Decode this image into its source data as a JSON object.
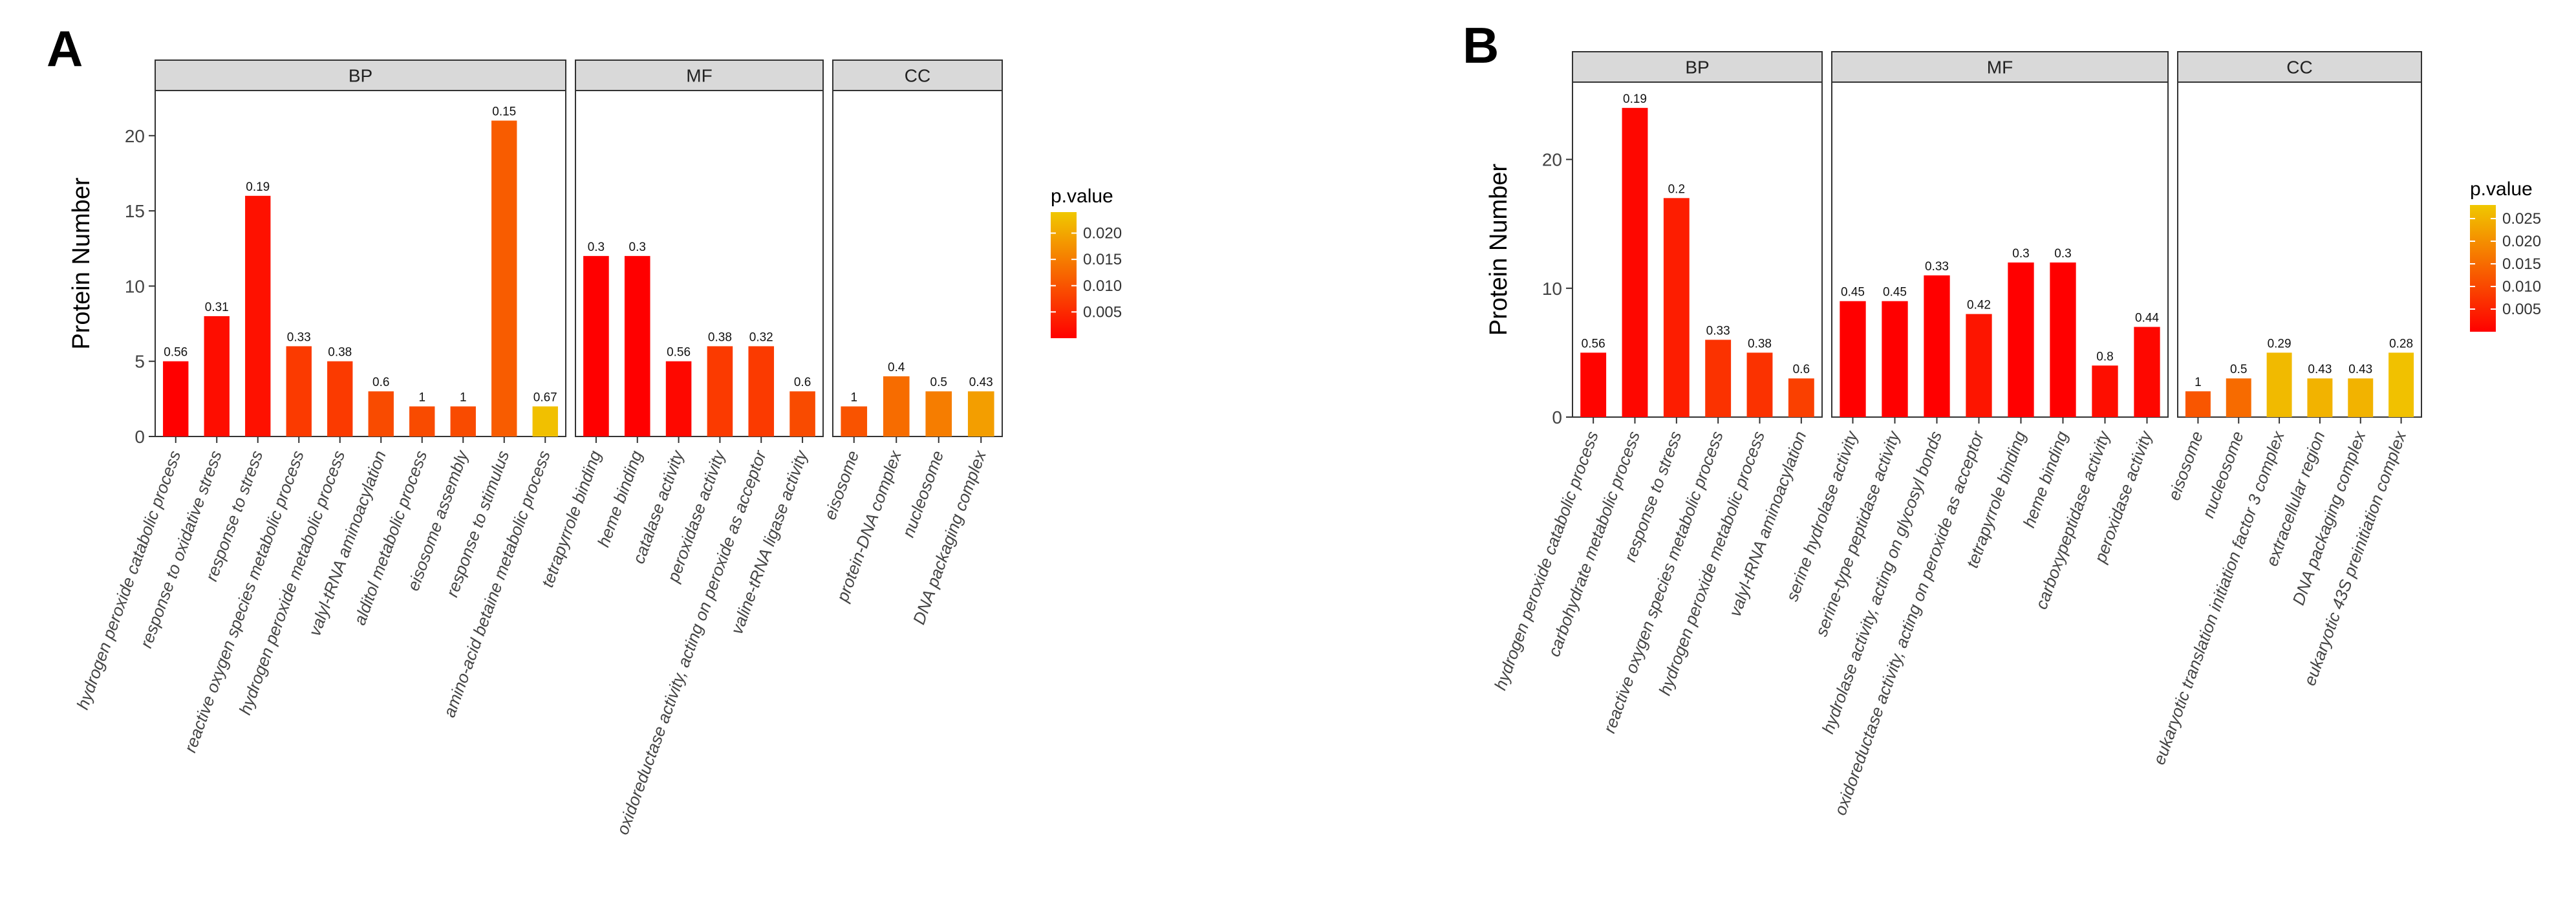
{
  "colors": {
    "low": "#ff0000",
    "high": "#f0c800",
    "strip": "#d9d9d9",
    "frame": "#333333"
  },
  "chart_data": [
    {
      "panel_label": "A",
      "type": "bar",
      "ylabel": "Protein Number",
      "ylim": [
        0,
        23
      ],
      "yticks": [
        0,
        5,
        10,
        15,
        20
      ],
      "legend": {
        "title": "p.value",
        "min": 0.0,
        "max": 0.024,
        "ticks": [
          0.005,
          0.01,
          0.015,
          0.02
        ],
        "tick_labels": [
          "0.005",
          "0.010",
          "0.015",
          "0.020"
        ],
        "position": "right"
      },
      "facets": [
        {
          "name": "BP",
          "categories": [
            {
              "label": "hydrogen peroxide catabolic process",
              "value": 5,
              "annotation": "0.56",
              "p": 0.0
            },
            {
              "label": "response to oxidative stress",
              "value": 8,
              "annotation": "0.31",
              "p": 0.0015
            },
            {
              "label": "response to stress",
              "value": 16,
              "annotation": "0.19",
              "p": 0.002
            },
            {
              "label": "reactive oxygen species metabolic process",
              "value": 6,
              "annotation": "0.33",
              "p": 0.007
            },
            {
              "label": "hydrogen peroxide metabolic process",
              "value": 5,
              "annotation": "0.38",
              "p": 0.007
            },
            {
              "label": "valyl-tRNA aminoacylation",
              "value": 3,
              "annotation": "0.6",
              "p": 0.009
            },
            {
              "label": "alditol metabolic process",
              "value": 2,
              "annotation": "1",
              "p": 0.009
            },
            {
              "label": "eisosome assembly",
              "value": 2,
              "annotation": "1",
              "p": 0.009
            },
            {
              "label": "response to stimulus",
              "value": 21,
              "annotation": "0.15",
              "p": 0.011
            },
            {
              "label": "amino-acid betaine metabolic process",
              "value": 2,
              "annotation": "0.67",
              "p": 0.023
            }
          ]
        },
        {
          "name": "MF",
          "categories": [
            {
              "label": "tetrapyrrole binding",
              "value": 12,
              "annotation": "0.3",
              "p": 0.0
            },
            {
              "label": "heme binding",
              "value": 12,
              "annotation": "0.3",
              "p": 0.0
            },
            {
              "label": "catalase activity",
              "value": 5,
              "annotation": "0.56",
              "p": 0.001
            },
            {
              "label": "peroxidase activity",
              "value": 6,
              "annotation": "0.38",
              "p": 0.007
            },
            {
              "label": "oxidoreductase activity, acting on peroxide as acceptor",
              "value": 6,
              "annotation": "0.32",
              "p": 0.007
            },
            {
              "label": "valine-tRNA ligase activity",
              "value": 3,
              "annotation": "0.6",
              "p": 0.009
            }
          ]
        },
        {
          "name": "CC",
          "categories": [
            {
              "label": "eisosome",
              "value": 2,
              "annotation": "1",
              "p": 0.01
            },
            {
              "label": "protein-DNA complex",
              "value": 4,
              "annotation": "0.4",
              "p": 0.013
            },
            {
              "label": "nucleosome",
              "value": 3,
              "annotation": "0.5",
              "p": 0.015
            },
            {
              "label": "DNA packaging complex",
              "value": 3,
              "annotation": "0.43",
              "p": 0.019
            }
          ]
        }
      ]
    },
    {
      "panel_label": "B",
      "type": "bar",
      "ylabel": "Protein Number",
      "ylim": [
        0,
        26
      ],
      "yticks": [
        0,
        10,
        20
      ],
      "legend": {
        "title": "p.value",
        "min": 0.0,
        "max": 0.028,
        "ticks": [
          0.005,
          0.01,
          0.015,
          0.02,
          0.025
        ],
        "tick_labels": [
          "0.005",
          "0.010",
          "0.015",
          "0.020",
          "0.025"
        ],
        "position": "right"
      },
      "facets": [
        {
          "name": "BP",
          "categories": [
            {
              "label": "hydrogen peroxide catabolic process",
              "value": 5,
              "annotation": "0.56",
              "p": 0.0005
            },
            {
              "label": "carbohydrate metabolic process",
              "value": 24,
              "annotation": "0.19",
              "p": 0.001
            },
            {
              "label": "response to stress",
              "value": 17,
              "annotation": "0.2",
              "p": 0.004
            },
            {
              "label": "reactive oxygen species metabolic process",
              "value": 6,
              "annotation": "0.33",
              "p": 0.007
            },
            {
              "label": "hydrogen peroxide metabolic process",
              "value": 5,
              "annotation": "0.38",
              "p": 0.007
            },
            {
              "label": "valyl-tRNA aminoacylation",
              "value": 3,
              "annotation": "0.6",
              "p": 0.009
            }
          ]
        },
        {
          "name": "MF",
          "categories": [
            {
              "label": "serine hydrolase activity",
              "value": 9,
              "annotation": "0.45",
              "p": 0.0
            },
            {
              "label": "serine-type peptidase activity",
              "value": 9,
              "annotation": "0.45",
              "p": 0.0
            },
            {
              "label": "hydrolase activity, acting on glycosyl bonds",
              "value": 11,
              "annotation": "0.33",
              "p": 0.0
            },
            {
              "label": "oxidoreductase activity, acting on peroxide as acceptor",
              "value": 8,
              "annotation": "0.42",
              "p": 0.003
            },
            {
              "label": "tetrapyrrole binding",
              "value": 12,
              "annotation": "0.3",
              "p": 0.0
            },
            {
              "label": "heme binding",
              "value": 12,
              "annotation": "0.3",
              "p": 0.0
            },
            {
              "label": "carboxypeptidase activity",
              "value": 4,
              "annotation": "0.8",
              "p": 0.002
            },
            {
              "label": "peroxidase activity",
              "value": 7,
              "annotation": "0.44",
              "p": 0.001
            }
          ]
        },
        {
          "name": "CC",
          "categories": [
            {
              "label": "eisosome",
              "value": 2,
              "annotation": "1",
              "p": 0.012
            },
            {
              "label": "nucleosome",
              "value": 3,
              "annotation": "0.5",
              "p": 0.015
            },
            {
              "label": "eukaryotic translation initiation factor 3 complex",
              "value": 5,
              "annotation": "0.29",
              "p": 0.026
            },
            {
              "label": "extracellular region",
              "value": 3,
              "annotation": "0.43",
              "p": 0.025
            },
            {
              "label": "DNA packaging complex",
              "value": 3,
              "annotation": "0.43",
              "p": 0.025
            },
            {
              "label": "eukaryotic 43S preinitiation complex",
              "value": 5,
              "annotation": "0.28",
              "p": 0.027
            }
          ]
        }
      ]
    }
  ]
}
